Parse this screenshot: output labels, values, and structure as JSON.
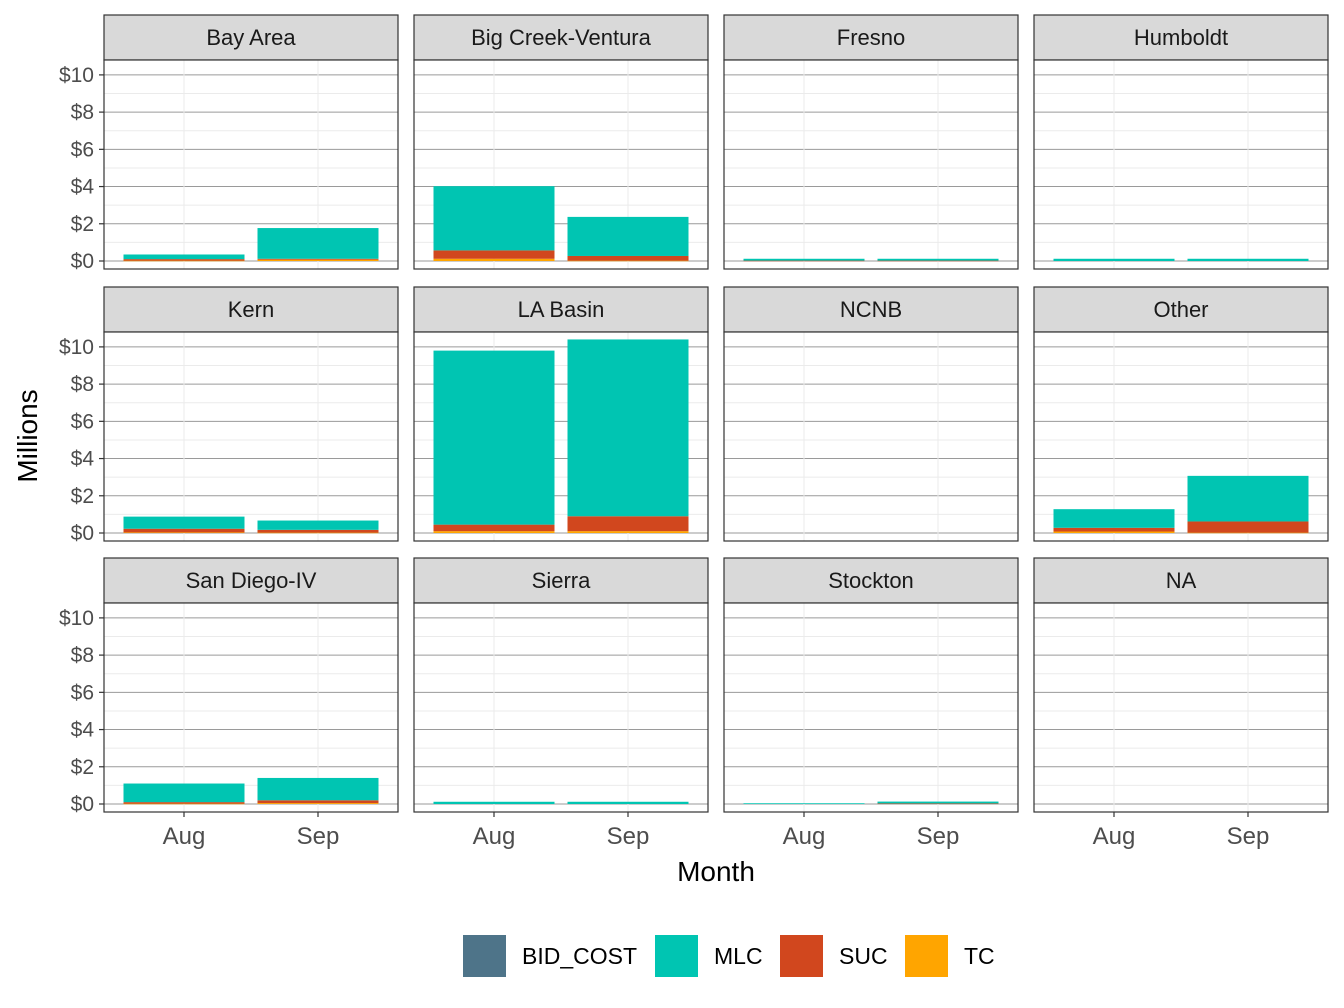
{
  "chart_data": {
    "type": "bar",
    "stacked": true,
    "faceted": true,
    "xlabel": "Month",
    "ylabel": "Millions",
    "categories": [
      "Aug",
      "Sep"
    ],
    "ylim": [
      0,
      10.8
    ],
    "y_ticks": [
      0,
      2,
      4,
      6,
      8,
      10
    ],
    "y_tick_labels": [
      "$0",
      "$2",
      "$4",
      "$6",
      "$8",
      "$10"
    ],
    "grid": true,
    "legend_position": "bottom",
    "series": [
      {
        "name": "BID_COST",
        "color": "#4E7489"
      },
      {
        "name": "MLC",
        "color": "#00C5B2"
      },
      {
        "name": "SUC",
        "color": "#D1471E"
      },
      {
        "name": "TC",
        "color": "#FFA500"
      }
    ],
    "facets": [
      {
        "name": "Bay Area",
        "values": {
          "BID_COST": [
            0,
            0
          ],
          "MLC": [
            0.25,
            1.65
          ],
          "SUC": [
            0.08,
            0.05
          ],
          "TC": [
            0.02,
            0.07
          ]
        }
      },
      {
        "name": "Big Creek-Ventura",
        "values": {
          "BID_COST": [
            0,
            0
          ],
          "MLC": [
            3.45,
            2.1
          ],
          "SUC": [
            0.45,
            0.25
          ],
          "TC": [
            0.12,
            0.02
          ]
        }
      },
      {
        "name": "Fresno",
        "values": {
          "BID_COST": [
            0,
            0
          ],
          "MLC": [
            0.1,
            0.1
          ],
          "SUC": [
            0.02,
            0.02
          ],
          "TC": [
            0,
            0
          ]
        }
      },
      {
        "name": "Humboldt",
        "values": {
          "BID_COST": [
            0,
            0
          ],
          "MLC": [
            0.12,
            0.12
          ],
          "SUC": [
            0,
            0
          ],
          "TC": [
            0,
            0
          ]
        }
      },
      {
        "name": "Kern",
        "values": {
          "BID_COST": [
            0,
            0
          ],
          "MLC": [
            0.65,
            0.5
          ],
          "SUC": [
            0.2,
            0.15
          ],
          "TC": [
            0.03,
            0.02
          ]
        }
      },
      {
        "name": "LA Basin",
        "values": {
          "BID_COST": [
            0,
            0
          ],
          "MLC": [
            9.35,
            9.5
          ],
          "SUC": [
            0.35,
            0.8
          ],
          "TC": [
            0.1,
            0.1
          ]
        }
      },
      {
        "name": "NCNB",
        "values": {
          "BID_COST": [
            0,
            0
          ],
          "MLC": [
            0,
            0
          ],
          "SUC": [
            0,
            0
          ],
          "TC": [
            0,
            0
          ]
        }
      },
      {
        "name": "Other",
        "values": {
          "BID_COST": [
            0,
            0
          ],
          "MLC": [
            1.0,
            2.45
          ],
          "SUC": [
            0.2,
            0.6
          ],
          "TC": [
            0.08,
            0.02
          ]
        }
      },
      {
        "name": "San Diego-IV",
        "values": {
          "BID_COST": [
            0,
            0
          ],
          "MLC": [
            1.0,
            1.2
          ],
          "SUC": [
            0.08,
            0.15
          ],
          "TC": [
            0.02,
            0.05
          ]
        }
      },
      {
        "name": "Sierra",
        "values": {
          "BID_COST": [
            0,
            0
          ],
          "MLC": [
            0.12,
            0.12
          ],
          "SUC": [
            0,
            0
          ],
          "TC": [
            0,
            0
          ]
        }
      },
      {
        "name": "Stockton",
        "values": {
          "BID_COST": [
            0,
            0
          ],
          "MLC": [
            0.04,
            0.1
          ],
          "SUC": [
            0,
            0.03
          ],
          "TC": [
            0,
            0
          ]
        }
      },
      {
        "name": "NA",
        "values": {
          "BID_COST": [
            0,
            0
          ],
          "MLC": [
            0,
            0
          ],
          "SUC": [
            0,
            0
          ],
          "TC": [
            0,
            0
          ]
        }
      }
    ]
  }
}
